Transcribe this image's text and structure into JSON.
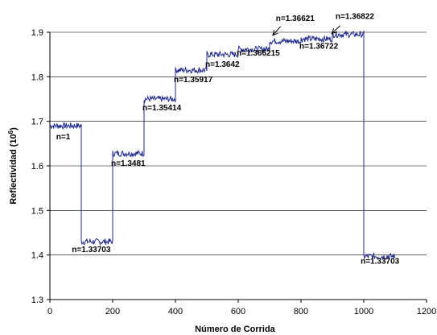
{
  "chart_data": {
    "type": "line",
    "xlabel": "Número de Corrida",
    "ylabel_main": "Reflectividad (10",
    "ylabel_exp": "6",
    "ylabel_tail": ")",
    "xlim": [
      0,
      1200
    ],
    "ylim": [
      1.3,
      1.9
    ],
    "grid": "horizontal-major",
    "legend": "none",
    "x_ticks": [
      0,
      200,
      400,
      600,
      800,
      1000,
      1200
    ],
    "y_ticks": [
      "1.3",
      "1.4",
      "1.5",
      "1.6",
      "1.7",
      "1.8",
      "1.9"
    ],
    "colors": {
      "series": "#1f2a8c"
    },
    "series": [
      {
        "segments": [
          {
            "x_start": 0,
            "x_end": 100,
            "level": 1.69
          },
          {
            "x_start": 100,
            "x_end": 200,
            "level": 1.43
          },
          {
            "x_start": 200,
            "x_end": 300,
            "level": 1.628
          },
          {
            "x_start": 300,
            "x_end": 400,
            "level": 1.75
          },
          {
            "x_start": 400,
            "x_end": 500,
            "level": 1.815
          },
          {
            "x_start": 500,
            "x_end": 600,
            "level": 1.85
          },
          {
            "x_start": 600,
            "x_end": 700,
            "level": 1.862
          },
          {
            "x_start": 700,
            "x_end": 800,
            "level": 1.88
          },
          {
            "x_start": 800,
            "x_end": 900,
            "level": 1.885
          },
          {
            "x_start": 900,
            "x_end": 1000,
            "level": 1.895
          },
          {
            "x_start": 1000,
            "x_end": 1100,
            "level": 1.397
          }
        ]
      }
    ],
    "annotations": [
      {
        "text": "n=1",
        "x": 20,
        "y": 1.66,
        "anchor": "start"
      },
      {
        "text": "n=1.33703",
        "x": 70,
        "y": 1.407,
        "anchor": "start"
      },
      {
        "text": "n=1.3481",
        "x": 195,
        "y": 1.6,
        "anchor": "start"
      },
      {
        "text": "n=1.35414",
        "x": 295,
        "y": 1.725,
        "anchor": "start"
      },
      {
        "text": "n=1.35917",
        "x": 395,
        "y": 1.788,
        "anchor": "start"
      },
      {
        "text": "n=1.3642",
        "x": 495,
        "y": 1.822,
        "anchor": "start"
      },
      {
        "text": "n=1.366215",
        "x": 595,
        "y": 1.848,
        "anchor": "start"
      },
      {
        "text": "n=1.36621",
        "x": 720,
        "y": 1.925,
        "anchor": "start"
      },
      {
        "text": "n=1.36722",
        "x": 795,
        "y": 1.863,
        "anchor": "start"
      },
      {
        "text": "n=1.36822",
        "x": 910,
        "y": 1.93,
        "anchor": "start"
      },
      {
        "text": "n=1.33703",
        "x": 990,
        "y": 1.38,
        "anchor": "start"
      }
    ],
    "arrows": [
      {
        "from": [
          735,
          1.913
        ],
        "to": [
          710,
          1.893
        ]
      },
      {
        "from": [
          925,
          1.915
        ],
        "to": [
          898,
          1.897
        ]
      }
    ]
  }
}
